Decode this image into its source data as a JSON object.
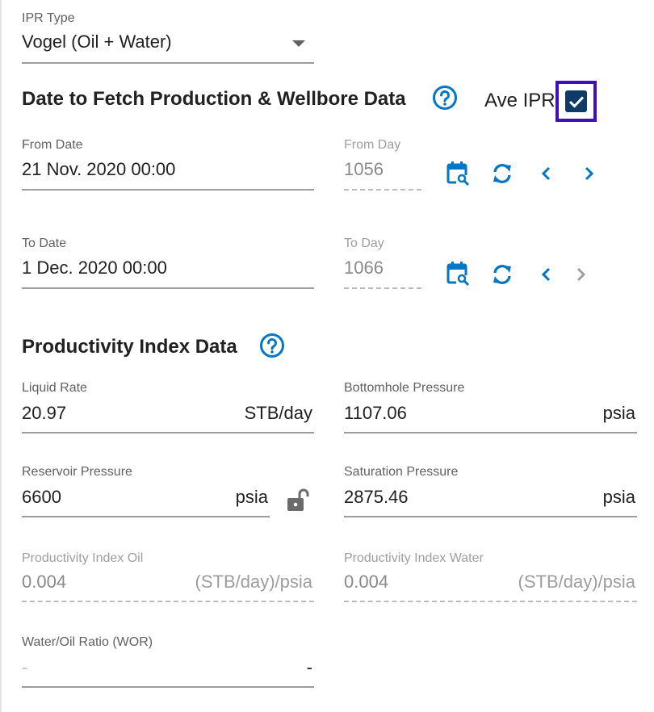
{
  "ipr_type": {
    "label": "IPR Type",
    "value": "Vogel (Oil + Water)"
  },
  "fetch_section": {
    "title": "Date to Fetch Production & Wellbore Data",
    "ave_ipr_label": "Ave IPR",
    "ave_ipr_checked": true,
    "from_date": {
      "label": "From Date",
      "value": "21 Nov. 2020 00:00"
    },
    "from_day": {
      "label": "From Day",
      "value": "1056"
    },
    "to_date": {
      "label": "To Date",
      "value": "1 Dec. 2020 00:00"
    },
    "to_day": {
      "label": "To Day",
      "value": "1066"
    }
  },
  "pi_section": {
    "title": "Productivity Index Data",
    "liquid_rate": {
      "label": "Liquid Rate",
      "value": "20.97",
      "unit": "STB/day"
    },
    "bottomhole_pressure": {
      "label": "Bottomhole Pressure",
      "value": "1107.06",
      "unit": "psia"
    },
    "reservoir_pressure": {
      "label": "Reservoir Pressure",
      "value": "6600",
      "unit": "psia"
    },
    "saturation_pressure": {
      "label": "Saturation Pressure",
      "value": "2875.46",
      "unit": "psia"
    },
    "pi_oil": {
      "label": "Productivity Index Oil",
      "value": "0.004",
      "unit": "(STB/day)/psia"
    },
    "pi_water": {
      "label": "Productivity Index Water",
      "value": "0.004",
      "unit": "(STB/day)/psia"
    },
    "wor": {
      "label": "Water/Oil Ratio (WOR)",
      "value": "-",
      "unit": "-"
    }
  },
  "colors": {
    "accent": "#0277c8",
    "checkbox": "#0d3a66",
    "focus_outline": "#3f0fbf",
    "disabled": "#9e9e9e"
  }
}
